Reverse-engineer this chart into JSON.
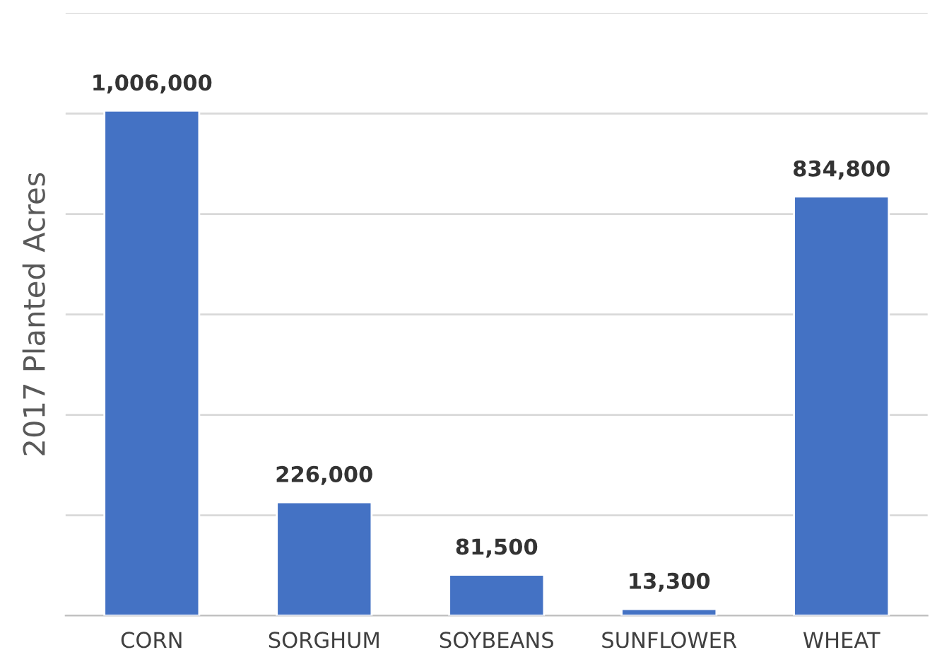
{
  "chart_data": {
    "type": "bar",
    "ylabel": "2017 Planted Acres",
    "categories": [
      "CORN",
      "SORGHUM",
      "SOYBEANS",
      "SUNFLOWER",
      "WHEAT"
    ],
    "values": [
      1006000,
      226000,
      81500,
      13300,
      834800
    ],
    "color": "#4472c4",
    "value_labels": [
      "1,006,000",
      "226,000",
      "81,500",
      "13,300",
      "834,800"
    ],
    "ylim": [
      0,
      1200000
    ],
    "yticks": [
      {
        "value": 0,
        "label": null
      },
      {
        "value": 200000,
        "label": null
      },
      {
        "value": 400000,
        "label": null
      },
      {
        "value": 600000,
        "label": null
      },
      {
        "value": 800000,
        "label": null
      },
      {
        "value": 1000000,
        "label": null
      },
      {
        "value": 1200000,
        "label": null
      }
    ],
    "grid": "y",
    "tick_labels": "x",
    "legend": false
  }
}
